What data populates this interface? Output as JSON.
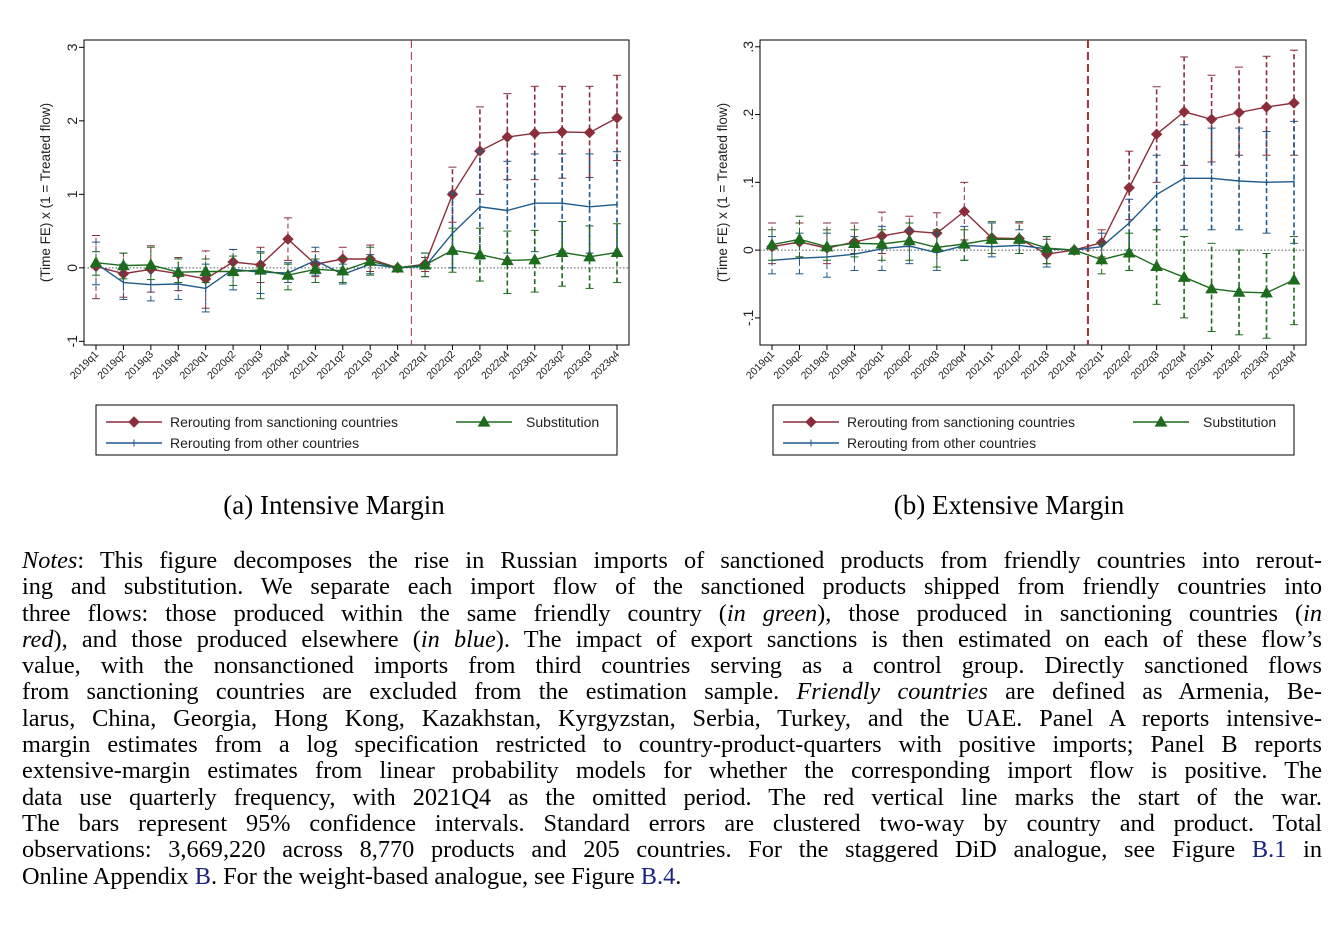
{
  "colors": {
    "red": "#8b2d3a",
    "blue": "#1f5a8a",
    "green": "#1e6b1e",
    "vline": "#a0303a"
  },
  "legend": {
    "red": "Rerouting from sanctioning countries",
    "green": "Substitution",
    "blue": "Rerouting from other countries"
  },
  "captions": {
    "a": "(a) Intensive Margin",
    "b": "(b) Extensive Margin"
  },
  "notes": [
    [
      {
        "t": "Notes",
        "i": true
      },
      {
        "t": ": This figure decomposes the rise in Russian imports of sanctioned products from friendly countries into rerout-"
      }
    ],
    [
      {
        "t": "ing and substitution.  We separate each import flow of the sanctioned products shipped from friendly countries into"
      }
    ],
    [
      {
        "t": "three flows: those produced within the same friendly country ("
      },
      {
        "t": "in green",
        "i": true
      },
      {
        "t": "), those produced in sanctioning countries ("
      },
      {
        "t": "in",
        "i": true
      }
    ],
    [
      {
        "t": "red",
        "i": true
      },
      {
        "t": "), and those produced elsewhere ("
      },
      {
        "t": "in blue",
        "i": true
      },
      {
        "t": "). The impact of export sanctions is then estimated on each of these flow’s"
      }
    ],
    [
      {
        "t": "value, with the nonsanctioned imports from third countries serving as a control group.  Directly sanctioned flows"
      }
    ],
    [
      {
        "t": "from sanctioning countries are excluded from the estimation sample. "
      },
      {
        "t": "Friendly countries",
        "i": true
      },
      {
        "t": " are defined as Armenia, Be-"
      }
    ],
    [
      {
        "t": "larus, China, Georgia, Hong Kong, Kazakhstan, Kyrgyzstan, Serbia, Turkey, and the UAE. Panel A reports intensive-"
      }
    ],
    [
      {
        "t": "margin estimates from a log specification restricted to country-product-quarters with positive imports; Panel B reports"
      }
    ],
    [
      {
        "t": "extensive-margin estimates from linear probability models for whether the corresponding import flow is positive. The"
      }
    ],
    [
      {
        "t": "data use quarterly frequency, with 2021Q4 as the omitted period.  The red vertical line marks the start of the war."
      }
    ],
    [
      {
        "t": "The bars represent 95% confidence intervals.  Standard errors are clustered two-way by country and product.  Total"
      }
    ],
    [
      {
        "t": "observations: 3,669,220 across 8,770 products and 205 countries. For the staggered DiD analogue, see Figure "
      },
      {
        "t": "B.1",
        "l": true
      },
      {
        "t": " in"
      }
    ],
    [
      {
        "t": "Online Appendix "
      },
      {
        "t": "B",
        "l": true
      },
      {
        "t": ". For the weight-based analogue, see Figure "
      },
      {
        "t": "B.4",
        "l": true
      },
      {
        "t": "."
      }
    ]
  ],
  "chart_data": [
    {
      "type": "line",
      "title": "(a) Intensive Margin",
      "ylabel": "(Time FE) x (1 = Treated flow)",
      "categories": [
        "2019q1",
        "2019q2",
        "2019q3",
        "2019q4",
        "2020q1",
        "2020q2",
        "2020q3",
        "2020q4",
        "2021q1",
        "2021q2",
        "2021q3",
        "2021q4",
        "2022q1",
        "2022q2",
        "2022q3",
        "2022q4",
        "2023q1",
        "2023q2",
        "2023q3",
        "2023q4"
      ],
      "ylim": [
        -1.05,
        3.1
      ],
      "yticks": [
        -1,
        0,
        1,
        2,
        3
      ],
      "ytick_labels": [
        "-1",
        "0",
        "1",
        "2",
        "3"
      ],
      "vline_after": "2021q4",
      "series": [
        {
          "name": "Rerouting from sanctioning countries",
          "color": "red",
          "marker": "diamond",
          "values": [
            0.02,
            -0.08,
            -0.02,
            -0.08,
            -0.15,
            0.08,
            0.04,
            0.39,
            0.05,
            0.12,
            0.12,
            0.0,
            0.05,
            1.0,
            1.59,
            1.78,
            1.83,
            1.85,
            1.84,
            2.04
          ],
          "lo": [
            -0.42,
            -0.4,
            -0.33,
            -0.31,
            -0.55,
            -0.1,
            -0.2,
            0.1,
            -0.12,
            -0.05,
            -0.05,
            -0.02,
            -0.05,
            0.62,
            1.0,
            1.2,
            1.2,
            1.22,
            1.23,
            1.46
          ],
          "hi": [
            0.44,
            0.2,
            0.3,
            0.14,
            0.23,
            0.25,
            0.28,
            0.68,
            0.22,
            0.28,
            0.31,
            0.02,
            0.14,
            1.37,
            2.19,
            2.37,
            2.47,
            2.47,
            2.47,
            2.62
          ]
        },
        {
          "name": "Rerouting from other countries",
          "color": "blue",
          "marker": "plus",
          "values": [
            0.06,
            -0.2,
            -0.23,
            -0.22,
            -0.28,
            -0.02,
            -0.06,
            -0.07,
            0.1,
            -0.09,
            0.05,
            0.0,
            0.02,
            0.47,
            0.83,
            0.78,
            0.88,
            0.88,
            0.83,
            0.86
          ],
          "lo": [
            -0.23,
            -0.43,
            -0.45,
            -0.43,
            -0.6,
            -0.3,
            -0.35,
            -0.2,
            -0.1,
            -0.22,
            -0.08,
            -0.02,
            -0.12,
            0.0,
            0.12,
            0.2,
            0.22,
            0.23,
            0.2,
            0.18
          ],
          "hi": [
            0.35,
            0.05,
            0.0,
            0.0,
            0.05,
            0.25,
            0.22,
            0.07,
            0.28,
            0.05,
            0.18,
            0.02,
            0.2,
            1.03,
            1.6,
            1.45,
            1.55,
            1.55,
            1.55,
            1.58
          ]
        },
        {
          "name": "Substitution",
          "color": "green",
          "marker": "triangle",
          "values": [
            0.07,
            0.03,
            0.04,
            -0.06,
            -0.05,
            -0.05,
            -0.03,
            -0.1,
            -0.02,
            -0.04,
            0.09,
            0.0,
            0.04,
            0.24,
            0.18,
            0.1,
            0.11,
            0.21,
            0.15,
            0.21
          ],
          "lo": [
            -0.1,
            -0.15,
            -0.16,
            -0.2,
            -0.2,
            -0.24,
            -0.42,
            -0.3,
            -0.2,
            -0.2,
            -0.1,
            -0.02,
            -0.12,
            -0.06,
            -0.18,
            -0.35,
            -0.33,
            -0.25,
            -0.28,
            -0.2
          ],
          "hi": [
            0.22,
            0.2,
            0.28,
            0.12,
            0.12,
            0.16,
            0.2,
            0.05,
            0.12,
            0.14,
            0.28,
            0.02,
            0.2,
            0.54,
            0.54,
            0.5,
            0.51,
            0.63,
            0.57,
            0.6
          ]
        }
      ]
    },
    {
      "type": "line",
      "title": "(b) Extensive Margin",
      "ylabel": "(Time FE) x (1 = Treated flow)",
      "categories": [
        "2019q1",
        "2019q2",
        "2019q3",
        "2019q4",
        "2020q1",
        "2020q2",
        "2020q3",
        "2020q4",
        "2021q1",
        "2021q2",
        "2021q3",
        "2021q4",
        "2022q1",
        "2022q2",
        "2022q3",
        "2022q4",
        "2023q1",
        "2023q2",
        "2023q3",
        "2023q4"
      ],
      "ylim": [
        -0.14,
        0.31
      ],
      "yticks": [
        -0.1,
        0,
        0.1,
        0.2,
        0.3
      ],
      "ytick_labels": [
        "-.1",
        "0",
        ".1",
        ".2",
        ".3"
      ],
      "vline_after": "2021q4",
      "series": [
        {
          "name": "Rerouting from sanctioning countries",
          "color": "red",
          "marker": "diamond",
          "values": [
            0.005,
            0.012,
            0.003,
            0.012,
            0.021,
            0.028,
            0.025,
            0.057,
            0.018,
            0.017,
            -0.006,
            0.0,
            0.011,
            0.092,
            0.171,
            0.204,
            0.193,
            0.203,
            0.211,
            0.217
          ],
          "lo": [
            -0.02,
            -0.01,
            -0.02,
            -0.005,
            -0.005,
            0.005,
            0.0,
            0.015,
            -0.005,
            -0.005,
            -0.02,
            -0.002,
            -0.01,
            0.045,
            0.1,
            0.125,
            0.13,
            0.14,
            0.14,
            0.14
          ],
          "hi": [
            0.04,
            0.04,
            0.04,
            0.04,
            0.056,
            0.05,
            0.055,
            0.1,
            0.04,
            0.04,
            0.016,
            0.002,
            0.03,
            0.146,
            0.241,
            0.285,
            0.258,
            0.27,
            0.286,
            0.295
          ]
        },
        {
          "name": "Rerouting from other countries",
          "color": "blue",
          "marker": "plus",
          "values": [
            -0.015,
            -0.012,
            -0.01,
            -0.006,
            0.002,
            0.006,
            -0.004,
            0.007,
            0.005,
            0.007,
            0.002,
            0.0,
            0.005,
            0.04,
            0.082,
            0.106,
            0.106,
            0.102,
            0.1,
            0.101
          ],
          "lo": [
            -0.035,
            -0.035,
            -0.04,
            -0.03,
            -0.03,
            -0.02,
            -0.03,
            -0.015,
            -0.01,
            -0.005,
            -0.025,
            -0.002,
            -0.015,
            0.0,
            0.03,
            0.03,
            0.03,
            0.03,
            0.025,
            0.01
          ],
          "hi": [
            0.02,
            0.025,
            0.025,
            0.02,
            0.035,
            0.03,
            0.025,
            0.035,
            0.04,
            0.03,
            0.02,
            0.002,
            0.025,
            0.075,
            0.14,
            0.185,
            0.18,
            0.18,
            0.175,
            0.19
          ]
        },
        {
          "name": "Substitution",
          "color": "green",
          "marker": "triangle",
          "values": [
            0.008,
            0.016,
            0.005,
            0.01,
            0.009,
            0.014,
            0.004,
            0.009,
            0.016,
            0.016,
            0.003,
            0.0,
            -0.014,
            -0.004,
            -0.024,
            -0.04,
            -0.057,
            -0.062,
            -0.063,
            -0.044
          ],
          "lo": [
            -0.015,
            -0.01,
            -0.015,
            -0.01,
            -0.015,
            -0.015,
            -0.025,
            -0.015,
            -0.005,
            -0.005,
            -0.02,
            -0.002,
            -0.035,
            -0.03,
            -0.08,
            -0.1,
            -0.12,
            -0.125,
            -0.13,
            -0.11
          ],
          "hi": [
            0.03,
            0.05,
            0.03,
            0.03,
            0.03,
            0.04,
            0.03,
            0.03,
            0.042,
            0.042,
            0.02,
            0.002,
            0.01,
            0.025,
            0.03,
            0.02,
            0.01,
            0.0,
            -0.005,
            0.02
          ]
        }
      ]
    }
  ]
}
